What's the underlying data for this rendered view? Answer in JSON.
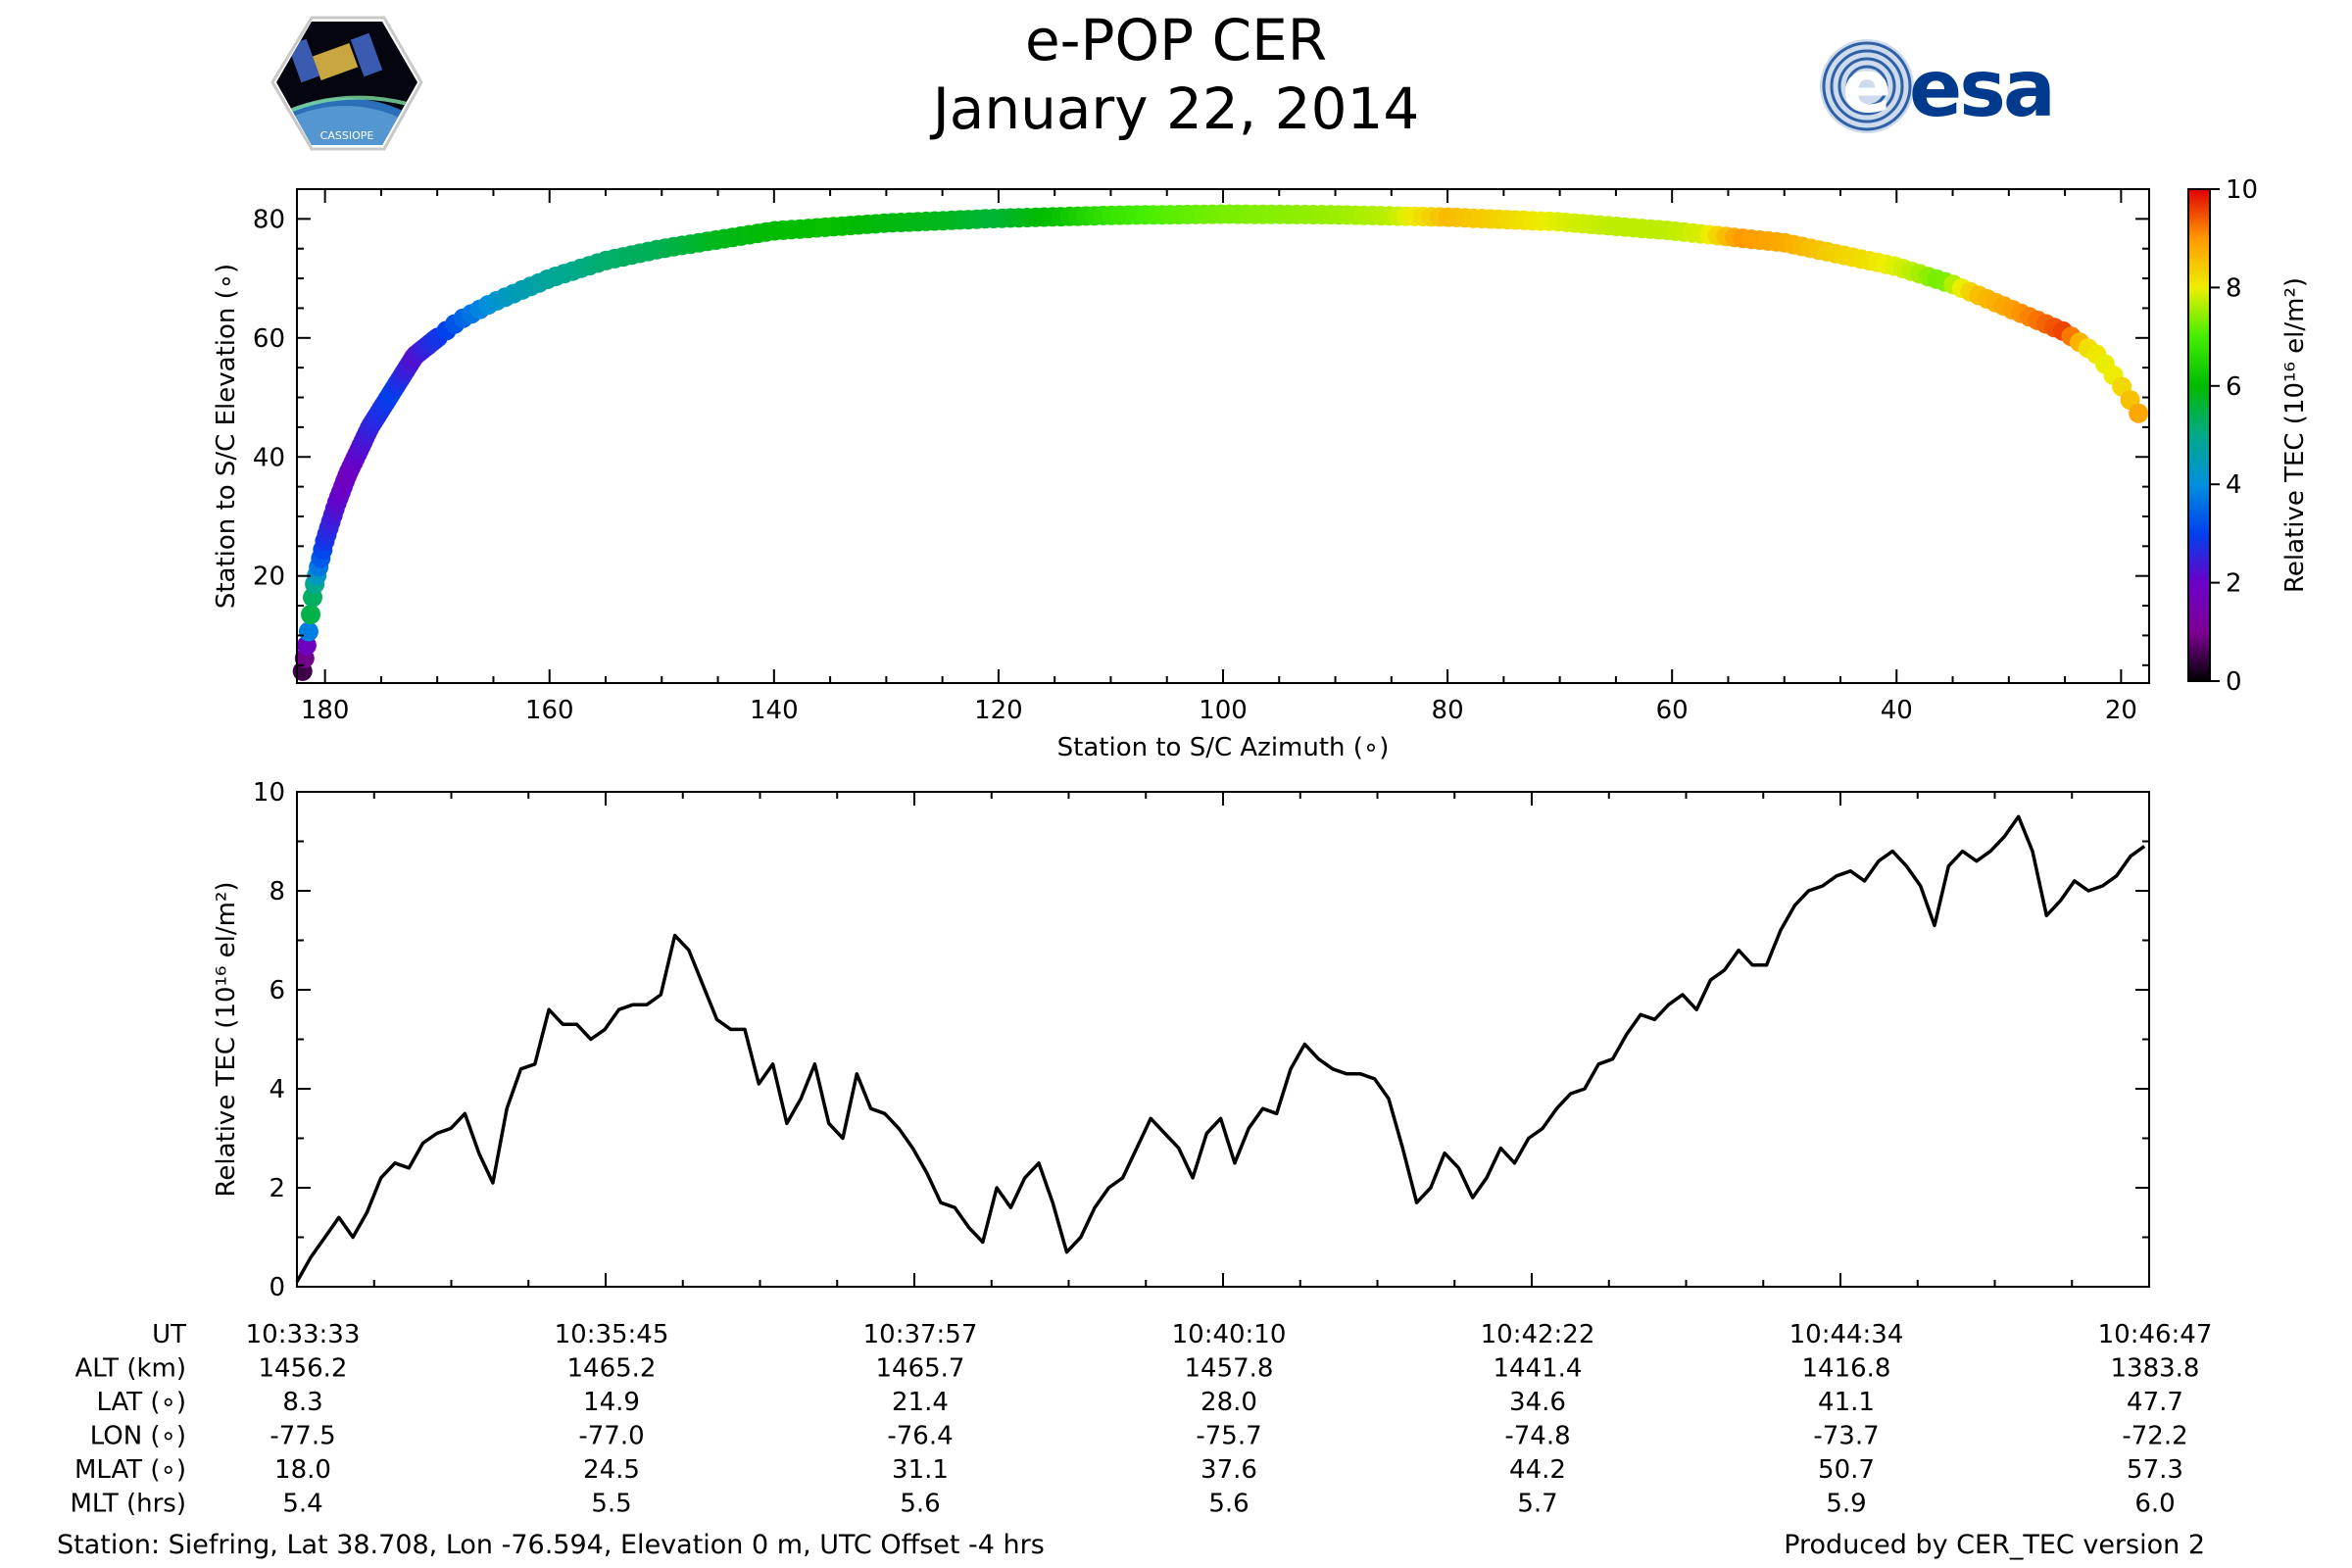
{
  "header": {
    "title": "e-POP CER",
    "date": "January 22, 2014",
    "esa_logo_text": "esa",
    "cassiope_logo_text": "CASSIOPE"
  },
  "chart_data": [
    {
      "type": "scatter",
      "xlabel": "Station to S/C Azimuth (∘)",
      "ylabel": "Station to S/C Elevation (∘)",
      "xlim": [
        182.5,
        17.5
      ],
      "ylim": [
        2,
        85
      ],
      "xticks": [
        180,
        160,
        140,
        120,
        100,
        80,
        60,
        40,
        20
      ],
      "yticks": [
        20,
        40,
        60,
        80
      ],
      "colorbar": {
        "label": "Relative TEC (10¹⁶ el/m²)",
        "range": [
          0,
          10
        ],
        "ticks": [
          0,
          2,
          4,
          6,
          8,
          10
        ],
        "colormap": "nipy_spectral"
      },
      "track": {
        "azimuth": [
          182,
          181.5,
          181,
          180,
          179,
          178,
          177,
          176,
          175,
          174,
          173,
          172,
          170,
          168,
          165,
          160,
          155,
          150,
          140,
          130,
          120,
          110,
          100,
          90,
          80,
          70,
          60,
          50,
          40,
          35,
          30,
          25,
          22,
          20,
          18
        ],
        "elevation": [
          4,
          10,
          18,
          26,
          32,
          37,
          41,
          45,
          48,
          51,
          54,
          57,
          60,
          63,
          66,
          70,
          73,
          75,
          78,
          79.3,
          80.1,
          80.6,
          80.8,
          80.7,
          80.3,
          79.5,
          78,
          76,
          72,
          69,
          65,
          61,
          57,
          52,
          46
        ]
      },
      "tec_color_profile": {
        "azimuth": [
          182,
          181.7,
          181.3,
          181,
          180.5,
          180,
          179,
          178,
          176,
          174,
          172,
          170,
          168,
          166,
          164,
          160,
          155,
          150,
          145,
          140,
          135,
          130,
          125,
          120,
          115,
          110,
          105,
          100,
          95,
          90,
          85,
          80,
          75,
          70,
          65,
          60,
          57,
          54,
          50,
          46,
          43,
          40,
          38,
          36,
          33,
          30,
          27,
          25,
          23,
          21,
          19,
          18
        ],
        "tec": [
          0.5,
          1.2,
          5.5,
          5.2,
          3.5,
          2.8,
          2.2,
          1.8,
          2.5,
          3.0,
          2.2,
          2.8,
          3.4,
          3.9,
          4.3,
          4.8,
          5.2,
          5.4,
          5.8,
          6.0,
          6.1,
          5.9,
          5.8,
          5.6,
          6.1,
          6.8,
          7.1,
          7.3,
          7.4,
          7.5,
          7.7,
          8.6,
          8.3,
          7.9,
          7.7,
          7.7,
          7.9,
          9.0,
          8.8,
          8.4,
          8.2,
          7.9,
          7.6,
          7.2,
          8.5,
          8.9,
          9.3,
          9.6,
          8.2,
          7.9,
          8.6,
          9.0
        ]
      }
    },
    {
      "type": "line",
      "ylabel": "Relative TEC (10¹⁶ el/m²)",
      "ylim": [
        0,
        10
      ],
      "yticks": [
        0,
        2,
        4,
        6,
        8,
        10
      ],
      "xlim": [
        0,
        794
      ],
      "x": [
        0,
        6,
        12,
        18,
        24,
        30,
        36,
        42,
        48,
        54,
        60,
        66,
        72,
        78,
        84,
        90,
        96,
        102,
        108,
        114,
        120,
        126,
        132,
        138,
        144,
        150,
        156,
        162,
        168,
        174,
        180,
        186,
        192,
        198,
        204,
        210,
        216,
        222,
        228,
        234,
        240,
        246,
        252,
        258,
        264,
        270,
        276,
        282,
        288,
        294,
        300,
        306,
        312,
        318,
        324,
        330,
        336,
        342,
        348,
        354,
        360,
        366,
        372,
        378,
        384,
        390,
        396,
        402,
        408,
        414,
        420,
        426,
        432,
        438,
        444,
        450,
        456,
        462,
        468,
        474,
        480,
        486,
        492,
        498,
        504,
        510,
        516,
        522,
        528,
        534,
        540,
        546,
        552,
        558,
        564,
        570,
        576,
        582,
        588,
        594,
        600,
        606,
        612,
        618,
        624,
        630,
        636,
        642,
        648,
        654,
        660,
        666,
        672,
        678,
        684,
        690,
        696,
        702,
        708,
        714,
        720,
        726,
        732,
        738,
        744,
        750,
        756,
        762,
        768,
        774,
        780,
        786,
        792
      ],
      "y": [
        0.1,
        0.6,
        1.0,
        1.4,
        1.0,
        1.5,
        2.2,
        2.5,
        2.4,
        2.9,
        3.1,
        3.2,
        3.5,
        2.7,
        2.1,
        3.6,
        4.4,
        4.5,
        5.6,
        5.3,
        5.3,
        5.0,
        5.2,
        5.6,
        5.7,
        5.7,
        5.9,
        7.1,
        6.8,
        6.1,
        5.4,
        5.2,
        5.2,
        4.1,
        4.5,
        3.3,
        3.8,
        4.5,
        3.3,
        3.0,
        4.3,
        3.6,
        3.5,
        3.2,
        2.8,
        2.3,
        1.7,
        1.6,
        1.2,
        0.9,
        2.0,
        1.6,
        2.2,
        2.5,
        1.7,
        0.7,
        1.0,
        1.6,
        2.0,
        2.2,
        2.8,
        3.4,
        3.1,
        2.8,
        2.2,
        3.1,
        3.4,
        2.5,
        3.2,
        3.6,
        3.5,
        4.4,
        4.9,
        4.6,
        4.4,
        4.3,
        4.3,
        4.2,
        3.8,
        2.8,
        1.7,
        2.0,
        2.7,
        2.4,
        1.8,
        2.2,
        2.8,
        2.5,
        3.0,
        3.2,
        3.6,
        3.9,
        4.0,
        4.5,
        4.6,
        5.1,
        5.5,
        5.4,
        5.7,
        5.9,
        5.6,
        6.2,
        6.4,
        6.8,
        6.5,
        6.5,
        7.2,
        7.7,
        8.0,
        8.1,
        8.3,
        8.4,
        8.2,
        8.6,
        8.8,
        8.5,
        8.1,
        7.3,
        8.5,
        8.8,
        8.6,
        8.8,
        9.1,
        9.5,
        8.8,
        7.5,
        7.8,
        8.2,
        8.0,
        8.1,
        8.3,
        8.7,
        8.9
      ]
    }
  ],
  "orbit_table": {
    "row_labels": [
      "UT",
      "ALT (km)",
      "LAT (∘)",
      "LON (∘)",
      "MLAT (∘)",
      "MLT (hrs)"
    ],
    "columns": [
      [
        "10:33:33",
        "1456.2",
        "8.3",
        "-77.5",
        "18.0",
        "5.4"
      ],
      [
        "10:35:45",
        "1465.2",
        "14.9",
        "-77.0",
        "24.5",
        "5.5"
      ],
      [
        "10:37:57",
        "1465.7",
        "21.4",
        "-76.4",
        "31.1",
        "5.6"
      ],
      [
        "10:40:10",
        "1457.8",
        "28.0",
        "-75.7",
        "37.6",
        "5.6"
      ],
      [
        "10:42:22",
        "1441.4",
        "34.6",
        "-74.8",
        "44.2",
        "5.7"
      ],
      [
        "10:44:34",
        "1416.8",
        "41.1",
        "-73.7",
        "50.7",
        "5.9"
      ],
      [
        "10:46:47",
        "1383.8",
        "47.7",
        "-72.2",
        "57.3",
        "6.0"
      ]
    ]
  },
  "footer": {
    "station": "Station: Siefring, Lat 38.708, Lon -76.594, Elevation 0 m, UTC Offset -4 hrs",
    "produced_by": "Produced by CER_TEC version 2"
  }
}
